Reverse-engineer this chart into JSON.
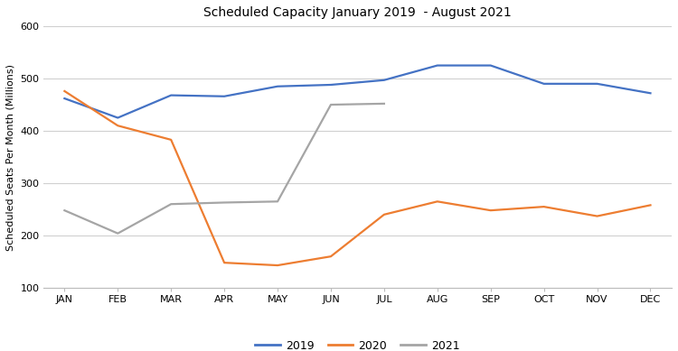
{
  "title": "Scheduled Capacity January 2019  - August 2021",
  "ylabel": "Scheduled Seats Per Month (Millions)",
  "months": [
    "JAN",
    "FEB",
    "MAR",
    "APR",
    "MAY",
    "JUN",
    "JUL",
    "AUG",
    "SEP",
    "OCT",
    "NOV",
    "DEC"
  ],
  "data_2019": [
    462,
    425,
    468,
    466,
    485,
    488,
    497,
    525,
    525,
    490,
    490,
    472
  ],
  "data_2020": [
    476,
    410,
    383,
    148,
    143,
    160,
    240,
    265,
    248,
    255,
    237,
    258
  ],
  "data_2021": [
    248,
    204,
    260,
    263,
    265,
    450,
    452,
    null,
    null,
    null,
    null,
    null
  ],
  "color_2019": "#4472C4",
  "color_2020": "#ED7D31",
  "color_2021": "#A5A5A5",
  "ylim_min": 100,
  "ylim_max": 600,
  "yticks": [
    100,
    200,
    300,
    400,
    500,
    600
  ],
  "background_color": "#FFFFFF",
  "grid_color": "#D0D0D0",
  "linewidth": 1.6
}
